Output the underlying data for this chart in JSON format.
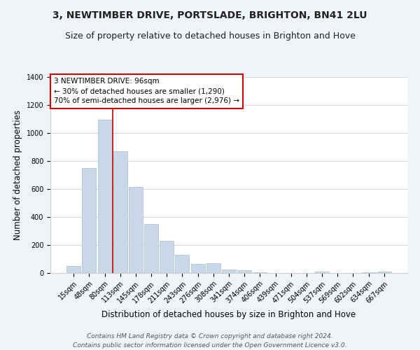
{
  "title": "3, NEWTIMBER DRIVE, PORTSLADE, BRIGHTON, BN41 2LU",
  "subtitle": "Size of property relative to detached houses in Brighton and Hove",
  "xlabel": "Distribution of detached houses by size in Brighton and Hove",
  "ylabel": "Number of detached properties",
  "bar_labels": [
    "15sqm",
    "48sqm",
    "80sqm",
    "113sqm",
    "145sqm",
    "178sqm",
    "211sqm",
    "243sqm",
    "276sqm",
    "308sqm",
    "341sqm",
    "374sqm",
    "406sqm",
    "439sqm",
    "471sqm",
    "504sqm",
    "537sqm",
    "569sqm",
    "602sqm",
    "634sqm",
    "667sqm"
  ],
  "bar_heights": [
    50,
    750,
    1095,
    870,
    615,
    348,
    228,
    130,
    65,
    70,
    25,
    18,
    5,
    0,
    0,
    0,
    10,
    0,
    0,
    5,
    10
  ],
  "bar_color": "#c8d8e8",
  "bar_edge_color": "#a8bfcc",
  "marker_line_color": "#cc0000",
  "annotation_text": "3 NEWTIMBER DRIVE: 96sqm\n← 30% of detached houses are smaller (1,290)\n70% of semi-detached houses are larger (2,976) →",
  "annotation_box_color": "#ffffff",
  "annotation_box_edge_color": "#cc0000",
  "ylim": [
    0,
    1400
  ],
  "yticks": [
    0,
    200,
    400,
    600,
    800,
    1000,
    1200,
    1400
  ],
  "footer_line1": "Contains HM Land Registry data © Crown copyright and database right 2024.",
  "footer_line2": "Contains public sector information licensed under the Open Government Licence v3.0.",
  "bg_color": "#f0f4f8",
  "plot_bg_color": "#ffffff",
  "title_fontsize": 10,
  "subtitle_fontsize": 9,
  "axis_label_fontsize": 8.5,
  "tick_fontsize": 7,
  "footer_fontsize": 6.5,
  "annotation_fontsize": 7.5
}
